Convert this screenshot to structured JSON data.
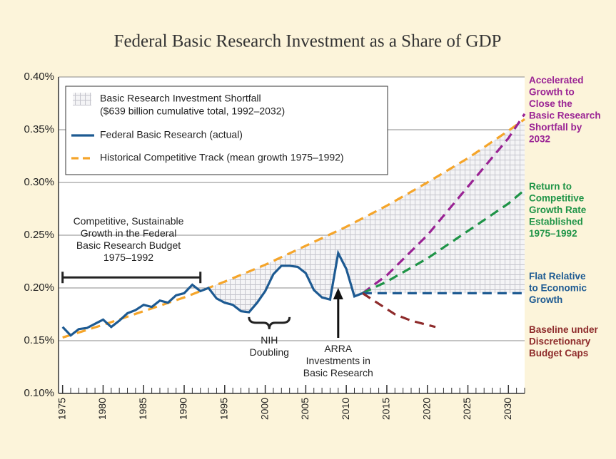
{
  "chart_data": {
    "type": "line",
    "title": "Federal Basic Research Investment as a Share of GDP",
    "xlim": [
      1974.5,
      2032
    ],
    "xticks": [
      1975,
      1980,
      1985,
      1990,
      1995,
      2000,
      2005,
      2010,
      2015,
      2020,
      2025,
      2030
    ],
    "ylim": [
      0.1,
      0.4
    ],
    "yticks": [
      {
        "value": 0.1,
        "label": "0.10%"
      },
      {
        "value": 0.15,
        "label": "0.15%"
      },
      {
        "value": 0.2,
        "label": "0.20%"
      },
      {
        "value": 0.25,
        "label": "0.25%"
      },
      {
        "value": 0.3,
        "label": "0.30%"
      },
      {
        "value": 0.35,
        "label": "0.35%"
      },
      {
        "value": 0.4,
        "label": "0.40%"
      }
    ],
    "grid": true,
    "shortfall": {
      "name": "Basic Research Investment Shortfall",
      "note": "($639 billion cumulative total, 1992–2032)",
      "color": "#b9b9b9"
    },
    "series": [
      {
        "name": "Federal Basic Research (actual)",
        "color": "#1d5a92",
        "dash": false,
        "x": [
          1975,
          1976,
          1977,
          1978,
          1979,
          1980,
          1981,
          1982,
          1983,
          1984,
          1985,
          1986,
          1987,
          1988,
          1989,
          1990,
          1991,
          1992,
          1993,
          1994,
          1995,
          1996,
          1997,
          1998,
          1999,
          2000,
          2001,
          2002,
          2003,
          2004,
          2005,
          2006,
          2007,
          2008,
          2009,
          2010,
          2011,
          2012
        ],
        "values": [
          0.163,
          0.155,
          0.161,
          0.162,
          0.166,
          0.17,
          0.163,
          0.169,
          0.176,
          0.179,
          0.184,
          0.182,
          0.188,
          0.186,
          0.193,
          0.195,
          0.203,
          0.197,
          0.2,
          0.19,
          0.186,
          0.184,
          0.178,
          0.177,
          0.186,
          0.197,
          0.213,
          0.221,
          0.221,
          0.22,
          0.214,
          0.198,
          0.191,
          0.189,
          0.233,
          0.218,
          0.192,
          0.195
        ]
      },
      {
        "name": "Historical Competitive Track (mean growth 1975–1992)",
        "color": "#f5a52a",
        "dash": true,
        "x": [
          1975,
          1980,
          1985,
          1990,
          1992,
          1995,
          2000,
          2005,
          2010,
          2015,
          2020,
          2025,
          2030,
          2032
        ],
        "values": [
          0.153,
          0.165,
          0.178,
          0.191,
          0.197,
          0.206,
          0.222,
          0.24,
          0.258,
          0.278,
          0.3,
          0.323,
          0.349,
          0.36
        ]
      },
      {
        "label": [
          "Accelerated",
          "Growth to",
          "Close the",
          "Basic Research",
          "Shortfall by",
          "2032"
        ],
        "color": "#9a2394",
        "dash": true,
        "x": [
          2012,
          2015,
          2020,
          2025,
          2030,
          2032
        ],
        "values": [
          0.195,
          0.212,
          0.25,
          0.296,
          0.342,
          0.365
        ]
      },
      {
        "label": [
          "Return to",
          "Competitive",
          "Growth Rate",
          "Established",
          "1975–1992"
        ],
        "color": "#1f9447",
        "dash": true,
        "x": [
          2012,
          2015,
          2020,
          2025,
          2030,
          2032
        ],
        "values": [
          0.195,
          0.206,
          0.228,
          0.254,
          0.28,
          0.293
        ]
      },
      {
        "label": [
          "Flat Relative",
          "to Economic",
          "Growth"
        ],
        "color": "#1d5a92",
        "dash": true,
        "x": [
          2012,
          2032
        ],
        "values": [
          0.195,
          0.195
        ]
      },
      {
        "label": [
          "Baseline under",
          "Discretionary",
          "Budget Caps"
        ],
        "color": "#8e2b2b",
        "dash": true,
        "x": [
          2012,
          2014,
          2016,
          2018,
          2021
        ],
        "values": [
          0.195,
          0.185,
          0.175,
          0.169,
          0.163
        ]
      }
    ],
    "annotations": [
      {
        "lines": [
          "Competitive, Sustainable",
          "Growth in the Federal",
          "Basic Research Budget",
          "1975–1992"
        ],
        "span": [
          1975,
          1992
        ],
        "y": 0.21
      },
      {
        "lines": [
          "NIH",
          "Doubling"
        ],
        "span": [
          1998,
          2003
        ],
        "y": 0.167
      },
      {
        "lines": [
          "ARRA",
          "Investments in",
          "Basic Research"
        ],
        "x": 2009,
        "y": 0.2
      }
    ]
  }
}
